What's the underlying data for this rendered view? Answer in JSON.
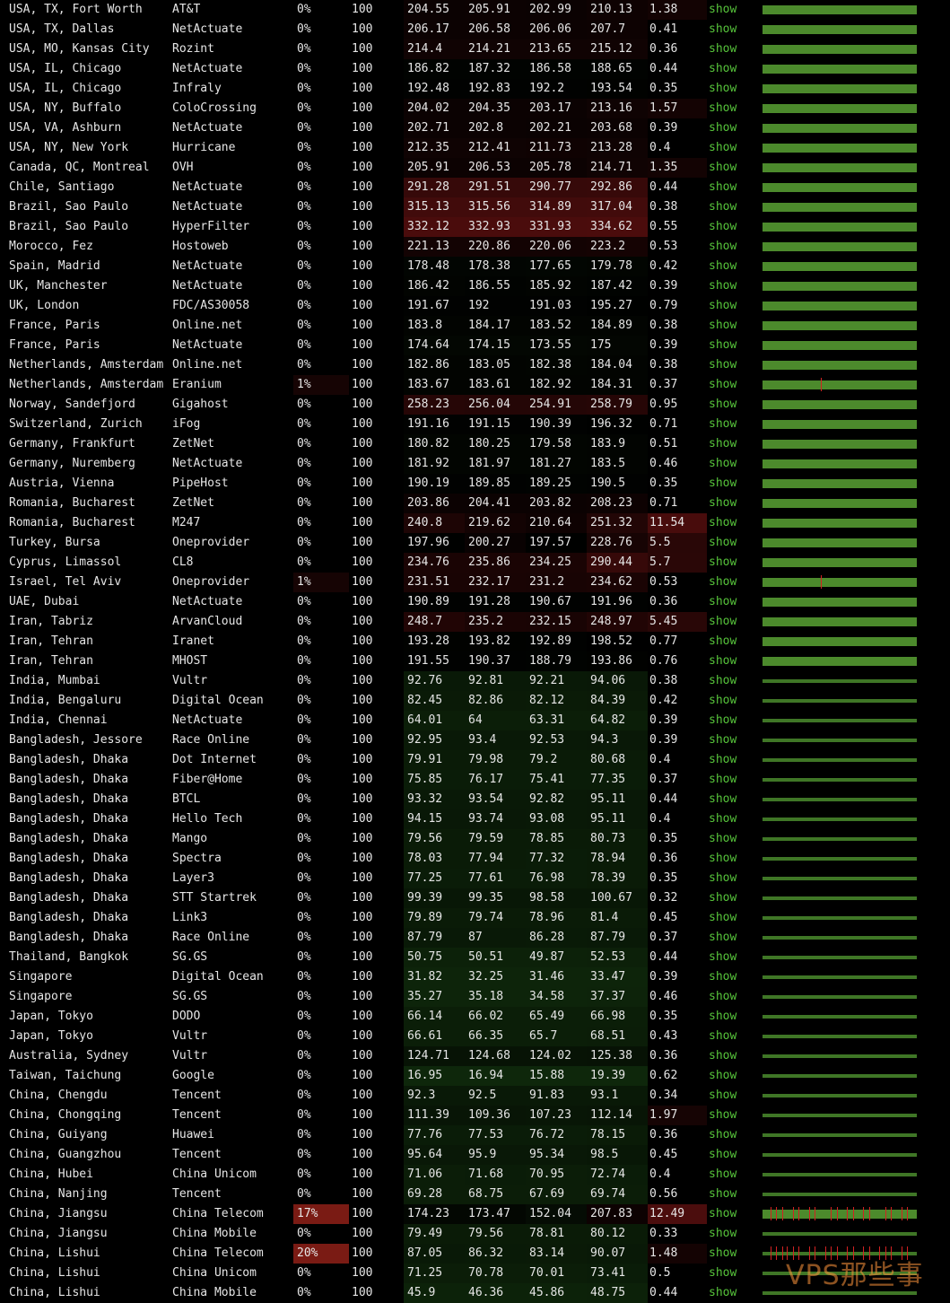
{
  "show_label": "show",
  "watermark": "VPS那些事",
  "rows": [
    {
      "location": "USA, TX, Fort Worth",
      "provider": "AT&T",
      "loss": "0%",
      "sent": "100",
      "last": "204.55",
      "avg": "205.91",
      "best": "202.99",
      "worst": "210.13",
      "stdev": "1.38"
    },
    {
      "location": "USA, TX, Dallas",
      "provider": "NetActuate",
      "loss": "0%",
      "sent": "100",
      "last": "206.17",
      "avg": "206.58",
      "best": "206.06",
      "worst": "207.7",
      "stdev": "0.41"
    },
    {
      "location": "USA, MO, Kansas City",
      "provider": "Rozint",
      "loss": "0%",
      "sent": "100",
      "last": "214.4",
      "avg": "214.21",
      "best": "213.65",
      "worst": "215.12",
      "stdev": "0.36"
    },
    {
      "location": "USA, IL, Chicago",
      "provider": "NetActuate",
      "loss": "0%",
      "sent": "100",
      "last": "186.82",
      "avg": "187.32",
      "best": "186.58",
      "worst": "188.65",
      "stdev": "0.44"
    },
    {
      "location": "USA, IL, Chicago",
      "provider": "Infraly",
      "loss": "0%",
      "sent": "100",
      "last": "192.48",
      "avg": "192.83",
      "best": "192.2",
      "worst": "193.54",
      "stdev": "0.35"
    },
    {
      "location": "USA, NY, Buffalo",
      "provider": "ColoCrossing",
      "loss": "0%",
      "sent": "100",
      "last": "204.02",
      "avg": "204.35",
      "best": "203.17",
      "worst": "213.16",
      "stdev": "1.57"
    },
    {
      "location": "USA, VA, Ashburn",
      "provider": "NetActuate",
      "loss": "0%",
      "sent": "100",
      "last": "202.71",
      "avg": "202.8",
      "best": "202.21",
      "worst": "203.68",
      "stdev": "0.39"
    },
    {
      "location": "USA, NY, New York",
      "provider": "Hurricane",
      "loss": "0%",
      "sent": "100",
      "last": "212.35",
      "avg": "212.41",
      "best": "211.73",
      "worst": "213.28",
      "stdev": "0.4"
    },
    {
      "location": "Canada, QC, Montreal",
      "provider": "OVH",
      "loss": "0%",
      "sent": "100",
      "last": "205.91",
      "avg": "206.53",
      "best": "205.78",
      "worst": "214.71",
      "stdev": "1.35"
    },
    {
      "location": "Chile, Santiago",
      "provider": "NetActuate",
      "loss": "0%",
      "sent": "100",
      "last": "291.28",
      "avg": "291.51",
      "best": "290.77",
      "worst": "292.86",
      "stdev": "0.44"
    },
    {
      "location": "Brazil, Sao Paulo",
      "provider": "NetActuate",
      "loss": "0%",
      "sent": "100",
      "last": "315.13",
      "avg": "315.56",
      "best": "314.89",
      "worst": "317.04",
      "stdev": "0.38"
    },
    {
      "location": "Brazil, Sao Paulo",
      "provider": "HyperFilter",
      "loss": "0%",
      "sent": "100",
      "last": "332.12",
      "avg": "332.93",
      "best": "331.93",
      "worst": "334.62",
      "stdev": "0.55"
    },
    {
      "location": "Morocco, Fez",
      "provider": "Hostoweb",
      "loss": "0%",
      "sent": "100",
      "last": "221.13",
      "avg": "220.86",
      "best": "220.06",
      "worst": "223.2",
      "stdev": "0.53"
    },
    {
      "location": "Spain, Madrid",
      "provider": "NetActuate",
      "loss": "0%",
      "sent": "100",
      "last": "178.48",
      "avg": "178.38",
      "best": "177.65",
      "worst": "179.78",
      "stdev": "0.42"
    },
    {
      "location": "UK, Manchester",
      "provider": "NetActuate",
      "loss": "0%",
      "sent": "100",
      "last": "186.42",
      "avg": "186.55",
      "best": "185.92",
      "worst": "187.42",
      "stdev": "0.39"
    },
    {
      "location": "UK, London",
      "provider": "FDC/AS30058",
      "loss": "0%",
      "sent": "100",
      "last": "191.67",
      "avg": "192",
      "best": "191.03",
      "worst": "195.27",
      "stdev": "0.79"
    },
    {
      "location": "France, Paris",
      "provider": "Online.net",
      "loss": "0%",
      "sent": "100",
      "last": "183.8",
      "avg": "184.17",
      "best": "183.52",
      "worst": "184.89",
      "stdev": "0.38"
    },
    {
      "location": "France, Paris",
      "provider": "NetActuate",
      "loss": "0%",
      "sent": "100",
      "last": "174.64",
      "avg": "174.15",
      "best": "173.55",
      "worst": "175",
      "stdev": "0.39"
    },
    {
      "location": "Netherlands, Amsterdam",
      "provider": "Online.net",
      "loss": "0%",
      "sent": "100",
      "last": "182.86",
      "avg": "183.05",
      "best": "182.38",
      "worst": "184.04",
      "stdev": "0.38"
    },
    {
      "location": "Netherlands, Amsterdam",
      "provider": "Eranium",
      "loss": "1%",
      "sent": "100",
      "last": "183.67",
      "avg": "183.61",
      "best": "182.92",
      "worst": "184.31",
      "stdev": "0.37"
    },
    {
      "location": "Norway, Sandefjord",
      "provider": "Gigahost",
      "loss": "0%",
      "sent": "100",
      "last": "258.23",
      "avg": "256.04",
      "best": "254.91",
      "worst": "258.79",
      "stdev": "0.95"
    },
    {
      "location": "Switzerland, Zurich",
      "provider": "iFog",
      "loss": "0%",
      "sent": "100",
      "last": "191.16",
      "avg": "191.15",
      "best": "190.39",
      "worst": "196.32",
      "stdev": "0.71"
    },
    {
      "location": "Germany, Frankfurt",
      "provider": "ZetNet",
      "loss": "0%",
      "sent": "100",
      "last": "180.82",
      "avg": "180.25",
      "best": "179.58",
      "worst": "183.9",
      "stdev": "0.51"
    },
    {
      "location": "Germany, Nuremberg",
      "provider": "NetActuate",
      "loss": "0%",
      "sent": "100",
      "last": "181.92",
      "avg": "181.97",
      "best": "181.27",
      "worst": "183.5",
      "stdev": "0.46"
    },
    {
      "location": "Austria, Vienna",
      "provider": "PipeHost",
      "loss": "0%",
      "sent": "100",
      "last": "190.19",
      "avg": "189.85",
      "best": "189.25",
      "worst": "190.5",
      "stdev": "0.35"
    },
    {
      "location": "Romania, Bucharest",
      "provider": "ZetNet",
      "loss": "0%",
      "sent": "100",
      "last": "203.86",
      "avg": "204.41",
      "best": "203.82",
      "worst": "208.23",
      "stdev": "0.71"
    },
    {
      "location": "Romania, Bucharest",
      "provider": "M247",
      "loss": "0%",
      "sent": "100",
      "last": "240.8",
      "avg": "219.62",
      "best": "210.64",
      "worst": "251.32",
      "stdev": "11.54"
    },
    {
      "location": "Turkey, Bursa",
      "provider": "Oneprovider",
      "loss": "0%",
      "sent": "100",
      "last": "197.96",
      "avg": "200.27",
      "best": "197.57",
      "worst": "228.76",
      "stdev": "5.5"
    },
    {
      "location": "Cyprus, Limassol",
      "provider": "CL8",
      "loss": "0%",
      "sent": "100",
      "last": "234.76",
      "avg": "235.86",
      "best": "234.25",
      "worst": "290.44",
      "stdev": "5.7"
    },
    {
      "location": "Israel, Tel Aviv",
      "provider": "Oneprovider",
      "loss": "1%",
      "sent": "100",
      "last": "231.51",
      "avg": "232.17",
      "best": "231.2",
      "worst": "234.62",
      "stdev": "0.53"
    },
    {
      "location": "UAE, Dubai",
      "provider": "NetActuate",
      "loss": "0%",
      "sent": "100",
      "last": "190.89",
      "avg": "191.28",
      "best": "190.67",
      "worst": "191.96",
      "stdev": "0.36"
    },
    {
      "location": "Iran, Tabriz",
      "provider": "ArvanCloud",
      "loss": "0%",
      "sent": "100",
      "last": "248.7",
      "avg": "235.2",
      "best": "232.15",
      "worst": "248.97",
      "stdev": "5.45"
    },
    {
      "location": "Iran, Tehran",
      "provider": "Iranet",
      "loss": "0%",
      "sent": "100",
      "last": "193.28",
      "avg": "193.82",
      "best": "192.89",
      "worst": "198.52",
      "stdev": "0.77"
    },
    {
      "location": "Iran, Tehran",
      "provider": "MHOST",
      "loss": "0%",
      "sent": "100",
      "last": "191.55",
      "avg": "190.37",
      "best": "188.79",
      "worst": "193.86",
      "stdev": "0.76"
    },
    {
      "location": "India, Mumbai",
      "provider": "Vultr",
      "loss": "0%",
      "sent": "100",
      "last": "92.76",
      "avg": "92.81",
      "best": "92.21",
      "worst": "94.06",
      "stdev": "0.38"
    },
    {
      "location": "India, Bengaluru",
      "provider": "Digital Ocean",
      "loss": "0%",
      "sent": "100",
      "last": "82.45",
      "avg": "82.86",
      "best": "82.12",
      "worst": "84.39",
      "stdev": "0.42"
    },
    {
      "location": "India, Chennai",
      "provider": "NetActuate",
      "loss": "0%",
      "sent": "100",
      "last": "64.01",
      "avg": "64",
      "best": "63.31",
      "worst": "64.82",
      "stdev": "0.39"
    },
    {
      "location": "Bangladesh, Jessore",
      "provider": "Race Online",
      "loss": "0%",
      "sent": "100",
      "last": "92.95",
      "avg": "93.4",
      "best": "92.53",
      "worst": "94.3",
      "stdev": "0.39"
    },
    {
      "location": "Bangladesh, Dhaka",
      "provider": "Dot Internet",
      "loss": "0%",
      "sent": "100",
      "last": "79.91",
      "avg": "79.98",
      "best": "79.2",
      "worst": "80.68",
      "stdev": "0.4"
    },
    {
      "location": "Bangladesh, Dhaka",
      "provider": "Fiber@Home",
      "loss": "0%",
      "sent": "100",
      "last": "75.85",
      "avg": "76.17",
      "best": "75.41",
      "worst": "77.35",
      "stdev": "0.37"
    },
    {
      "location": "Bangladesh, Dhaka",
      "provider": "BTCL",
      "loss": "0%",
      "sent": "100",
      "last": "93.32",
      "avg": "93.54",
      "best": "92.82",
      "worst": "95.11",
      "stdev": "0.44"
    },
    {
      "location": "Bangladesh, Dhaka",
      "provider": "Hello Tech",
      "loss": "0%",
      "sent": "100",
      "last": "94.15",
      "avg": "93.74",
      "best": "93.08",
      "worst": "95.11",
      "stdev": "0.4"
    },
    {
      "location": "Bangladesh, Dhaka",
      "provider": "Mango",
      "loss": "0%",
      "sent": "100",
      "last": "79.56",
      "avg": "79.59",
      "best": "78.85",
      "worst": "80.73",
      "stdev": "0.35"
    },
    {
      "location": "Bangladesh, Dhaka",
      "provider": "Spectra",
      "loss": "0%",
      "sent": "100",
      "last": "78.03",
      "avg": "77.94",
      "best": "77.32",
      "worst": "78.94",
      "stdev": "0.36"
    },
    {
      "location": "Bangladesh, Dhaka",
      "provider": "Layer3",
      "loss": "0%",
      "sent": "100",
      "last": "77.25",
      "avg": "77.61",
      "best": "76.98",
      "worst": "78.39",
      "stdev": "0.35"
    },
    {
      "location": "Bangladesh, Dhaka",
      "provider": "STT Startrek",
      "loss": "0%",
      "sent": "100",
      "last": "99.39",
      "avg": "99.35",
      "best": "98.58",
      "worst": "100.67",
      "stdev": "0.32"
    },
    {
      "location": "Bangladesh, Dhaka",
      "provider": "Link3",
      "loss": "0%",
      "sent": "100",
      "last": "79.89",
      "avg": "79.74",
      "best": "78.96",
      "worst": "81.4",
      "stdev": "0.45"
    },
    {
      "location": "Bangladesh, Dhaka",
      "provider": "Race Online",
      "loss": "0%",
      "sent": "100",
      "last": "87.79",
      "avg": "87",
      "best": "86.28",
      "worst": "87.79",
      "stdev": "0.37"
    },
    {
      "location": "Thailand, Bangkok",
      "provider": "SG.GS",
      "loss": "0%",
      "sent": "100",
      "last": "50.75",
      "avg": "50.51",
      "best": "49.87",
      "worst": "52.53",
      "stdev": "0.44"
    },
    {
      "location": "Singapore",
      "provider": "Digital Ocean",
      "loss": "0%",
      "sent": "100",
      "last": "31.82",
      "avg": "32.25",
      "best": "31.46",
      "worst": "33.47",
      "stdev": "0.39"
    },
    {
      "location": "Singapore",
      "provider": "SG.GS",
      "loss": "0%",
      "sent": "100",
      "last": "35.27",
      "avg": "35.18",
      "best": "34.58",
      "worst": "37.37",
      "stdev": "0.46"
    },
    {
      "location": "Japan, Tokyo",
      "provider": "DODO",
      "loss": "0%",
      "sent": "100",
      "last": "66.14",
      "avg": "66.02",
      "best": "65.49",
      "worst": "66.98",
      "stdev": "0.35"
    },
    {
      "location": "Japan, Tokyo",
      "provider": "Vultr",
      "loss": "0%",
      "sent": "100",
      "last": "66.61",
      "avg": "66.35",
      "best": "65.7",
      "worst": "68.51",
      "stdev": "0.43"
    },
    {
      "location": "Australia, Sydney",
      "provider": "Vultr",
      "loss": "0%",
      "sent": "100",
      "last": "124.71",
      "avg": "124.68",
      "best": "124.02",
      "worst": "125.38",
      "stdev": "0.36"
    },
    {
      "location": "Taiwan, Taichung",
      "provider": "Google",
      "loss": "0%",
      "sent": "100",
      "last": "16.95",
      "avg": "16.94",
      "best": "15.88",
      "worst": "19.39",
      "stdev": "0.62"
    },
    {
      "location": "China, Chengdu",
      "provider": "Tencent",
      "loss": "0%",
      "sent": "100",
      "last": "92.3",
      "avg": "92.5",
      "best": "91.83",
      "worst": "93.1",
      "stdev": "0.34"
    },
    {
      "location": "China, Chongqing",
      "provider": "Tencent",
      "loss": "0%",
      "sent": "100",
      "last": "111.39",
      "avg": "109.36",
      "best": "107.23",
      "worst": "112.14",
      "stdev": "1.97"
    },
    {
      "location": "China, Guiyang",
      "provider": "Huawei",
      "loss": "0%",
      "sent": "100",
      "last": "77.76",
      "avg": "77.53",
      "best": "76.72",
      "worst": "78.15",
      "stdev": "0.36"
    },
    {
      "location": "China, Guangzhou",
      "provider": "Tencent",
      "loss": "0%",
      "sent": "100",
      "last": "95.64",
      "avg": "95.9",
      "best": "95.34",
      "worst": "98.5",
      "stdev": "0.45"
    },
    {
      "location": "China, Hubei",
      "provider": "China Unicom",
      "loss": "0%",
      "sent": "100",
      "last": "71.06",
      "avg": "71.68",
      "best": "70.95",
      "worst": "72.74",
      "stdev": "0.4"
    },
    {
      "location": "China, Nanjing",
      "provider": "Tencent",
      "loss": "0%",
      "sent": "100",
      "last": "69.28",
      "avg": "68.75",
      "best": "67.69",
      "worst": "69.74",
      "stdev": "0.56"
    },
    {
      "location": "China, Jiangsu",
      "provider": "China Telecom",
      "loss": "17%",
      "sent": "100",
      "last": "174.23",
      "avg": "173.47",
      "best": "152.04",
      "worst": "207.83",
      "stdev": "12.49"
    },
    {
      "location": "China, Jiangsu",
      "provider": "China Mobile",
      "loss": "0%",
      "sent": "100",
      "last": "79.49",
      "avg": "79.56",
      "best": "78.81",
      "worst": "80.12",
      "stdev": "0.33"
    },
    {
      "location": "China, Lishui",
      "provider": "China Telecom",
      "loss": "20%",
      "sent": "100",
      "last": "87.05",
      "avg": "86.32",
      "best": "83.14",
      "worst": "90.07",
      "stdev": "1.48"
    },
    {
      "location": "China, Lishui",
      "provider": "China Unicom",
      "loss": "0%",
      "sent": "100",
      "last": "71.25",
      "avg": "70.78",
      "best": "70.01",
      "worst": "73.41",
      "stdev": "0.5"
    },
    {
      "location": "China, Lishui",
      "provider": "China Mobile",
      "loss": "0%",
      "sent": "100",
      "last": "45.9",
      "avg": "46.36",
      "best": "45.86",
      "worst": "48.75",
      "stdev": "0.44"
    }
  ]
}
